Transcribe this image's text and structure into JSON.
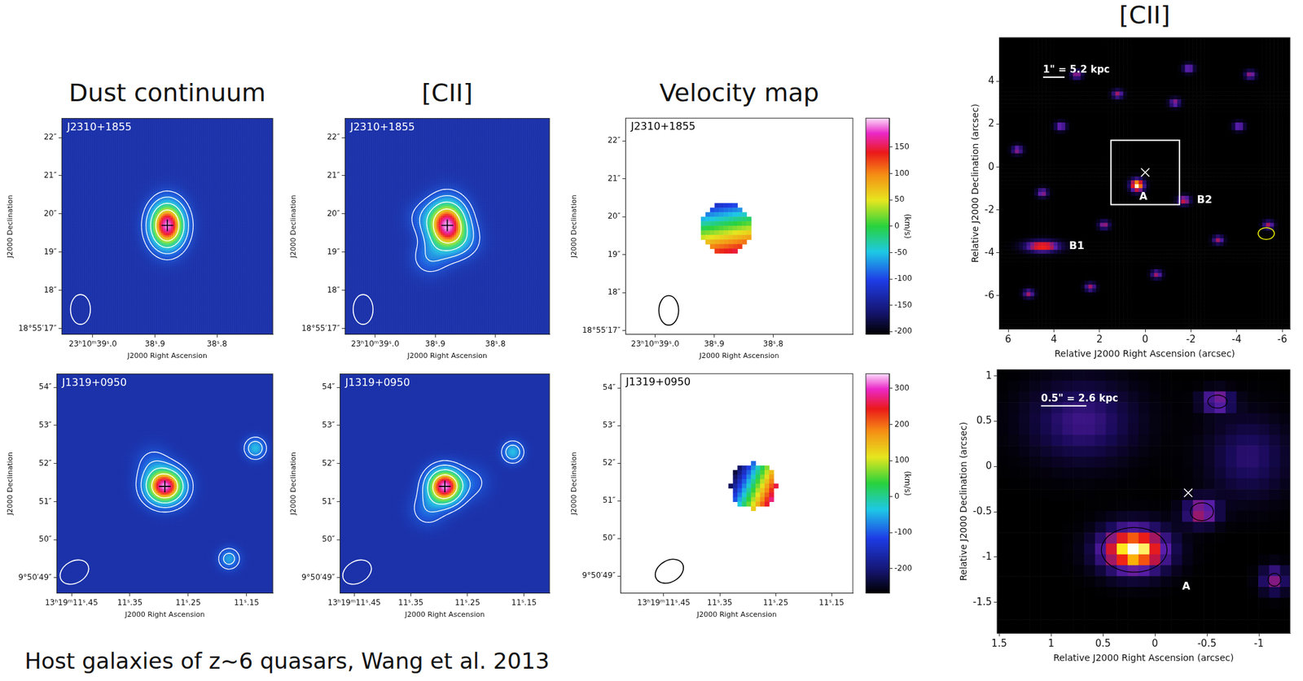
{
  "caption": "Host galaxies of z~6 quasars, Wang et al. 2013",
  "chart_data": [
    {
      "type": "intensity_map",
      "title": "Dust continuum",
      "label": "J2310+1855",
      "x_label": "J2000 Right Ascension",
      "y_label": "J2000 Declination",
      "xlim": [
        39.05,
        38.71
      ],
      "xticks": [
        {
          "value": 39.0,
          "label": "23ʰ10ᵐ39ˢ.0"
        },
        {
          "value": 38.9,
          "label": "38ˢ.9"
        },
        {
          "value": 38.8,
          "label": "38ˢ.8"
        }
      ],
      "ylim": [
        16.85,
        22.5
      ],
      "yticks": [
        {
          "value": 17,
          "label": "18°55′17″"
        },
        {
          "value": 18,
          "label": "18″"
        },
        {
          "value": 19,
          "label": "19″"
        },
        {
          "value": 20,
          "label": "20″"
        },
        {
          "value": 21,
          "label": "21″"
        },
        {
          "value": 22,
          "label": "22″"
        }
      ],
      "grid": false,
      "marker": "cross",
      "quasar_position": {
        "x": 38.88,
        "y": 19.7
      },
      "sources": [
        {
          "x": 38.88,
          "y": 19.7,
          "peak": 1.0,
          "sigma": [
            0.3,
            0.4
          ]
        }
      ],
      "contours": [
        0.08,
        0.18,
        0.35,
        0.6
      ],
      "beam": {
        "x": 39.02,
        "y": 17.5,
        "major": 0.78,
        "minor": 0.52,
        "pa": 0
      }
    },
    {
      "type": "intensity_map",
      "title": "[CII]",
      "label": "J2310+1855",
      "x_label": "J2000 Right Ascension",
      "y_label": "J2000 Declination",
      "xlim": [
        39.05,
        38.71
      ],
      "xticks": [
        {
          "value": 39.0,
          "label": "23ʰ10ᵐ39ˢ.0"
        },
        {
          "value": 38.9,
          "label": "38ˢ.9"
        },
        {
          "value": 38.8,
          "label": "38ˢ.8"
        }
      ],
      "ylim": [
        16.85,
        22.5
      ],
      "yticks": [
        {
          "value": 17,
          "label": "18°55′17″"
        },
        {
          "value": 18,
          "label": "18″"
        },
        {
          "value": 19,
          "label": "19″"
        },
        {
          "value": 20,
          "label": "20″"
        },
        {
          "value": 21,
          "label": "21″"
        },
        {
          "value": 22,
          "label": "22″"
        }
      ],
      "grid": false,
      "marker": "cross",
      "quasar_position": {
        "x": 38.88,
        "y": 19.7
      },
      "sources": [
        {
          "x": 38.88,
          "y": 19.7,
          "peak": 1.0,
          "sigma": [
            0.33,
            0.42
          ]
        },
        {
          "x": 38.91,
          "y": 18.85,
          "peak": 0.15,
          "sigma": [
            0.3,
            0.3
          ]
        },
        {
          "x": 38.85,
          "y": 19.3,
          "peak": 0.12,
          "sigma": [
            0.3,
            0.3
          ]
        },
        {
          "x": 38.92,
          "y": 19.9,
          "peak": 0.1,
          "sigma": [
            0.3,
            0.3
          ]
        }
      ],
      "contours": [
        0.08,
        0.18,
        0.35,
        0.6
      ],
      "beam": {
        "x": 39.02,
        "y": 17.5,
        "major": 0.78,
        "minor": 0.52,
        "pa": 0
      }
    },
    {
      "type": "velocity_map",
      "title": "Velocity map",
      "label": "J2310+1855",
      "x_label": "J2000 Right Ascension",
      "y_label": "J2000 Declination",
      "xlim": [
        39.05,
        38.665
      ],
      "xticks": [
        {
          "value": 39.0,
          "label": "23ʰ10ᵐ39ˢ.0"
        },
        {
          "value": 38.9,
          "label": "38ˢ.9"
        },
        {
          "value": 38.8,
          "label": "38ˢ.8"
        }
      ],
      "ylim": [
        16.9,
        22.6
      ],
      "yticks": [
        {
          "value": 17,
          "label": "18°55′17″"
        },
        {
          "value": 18,
          "label": "18″"
        },
        {
          "value": 19,
          "label": "19″"
        },
        {
          "value": 20,
          "label": "20″"
        },
        {
          "value": 21,
          "label": "21″"
        },
        {
          "value": 22,
          "label": "22″"
        }
      ],
      "grid": false,
      "velocity_field": {
        "x": 38.88,
        "y": 19.7,
        "radius": 0.65,
        "pixel_size": 0.12,
        "v_min": -120,
        "v_max": 150,
        "pa": 190
      },
      "beam": {
        "x": 38.977,
        "y": 17.53,
        "major": 0.78,
        "minor": 0.52,
        "pa": 0
      },
      "colorbar": {
        "title": "(km/s)",
        "ylim": [
          -205,
          205
        ],
        "yticks": [
          -200,
          -150,
          -100,
          -50,
          0,
          50,
          100,
          150
        ]
      }
    },
    {
      "type": "intensity_map",
      "label": "J1319+0950",
      "x_label": "J2000 Right Ascension",
      "y_label": "J2000 Declination",
      "xlim": [
        11.475,
        11.105
      ],
      "xticks": [
        {
          "value": 11.45,
          "label": "13ʰ19ᵐ11ˢ.45"
        },
        {
          "value": 11.35,
          "label": "11ˢ.35"
        },
        {
          "value": 11.25,
          "label": "11ˢ.25"
        },
        {
          "value": 11.15,
          "label": "11ˢ.15"
        }
      ],
      "ylim": [
        48.6,
        54.35
      ],
      "yticks": [
        {
          "value": 49,
          "label": "9°50′49″"
        },
        {
          "value": 50,
          "label": "50″"
        },
        {
          "value": 51,
          "label": "51″"
        },
        {
          "value": 52,
          "label": "52″"
        },
        {
          "value": 53,
          "label": "53″"
        },
        {
          "value": 54,
          "label": "54″"
        }
      ],
      "grid": false,
      "marker": "cross",
      "quasar_position": {
        "x": 11.29,
        "y": 51.4
      },
      "sources": [
        {
          "x": 11.29,
          "y": 51.4,
          "peak": 1.0,
          "sigma": [
            0.33,
            0.3
          ]
        },
        {
          "x": 11.31,
          "y": 52.0,
          "peak": 0.12,
          "sigma": [
            0.3,
            0.3
          ]
        },
        {
          "x": 11.135,
          "y": 52.4,
          "peak": 0.3,
          "sigma": [
            0.18,
            0.18
          ]
        },
        {
          "x": 11.18,
          "y": 49.5,
          "peak": 0.25,
          "sigma": [
            0.18,
            0.18
          ]
        }
      ],
      "contours": [
        0.08,
        0.18,
        0.35,
        0.6
      ],
      "beam": {
        "x": 11.445,
        "y": 49.15,
        "major": 0.8,
        "minor": 0.57,
        "pa": 300
      }
    },
    {
      "type": "intensity_map",
      "label": "J1319+0950",
      "x_label": "J2000 Right Ascension",
      "y_label": "J2000 Declination",
      "xlim": [
        11.475,
        11.105
      ],
      "xticks": [
        {
          "value": 11.45,
          "label": "13ʰ19ᵐ11ˢ.45"
        },
        {
          "value": 11.35,
          "label": "11ˢ.35"
        },
        {
          "value": 11.25,
          "label": "11ˢ.25"
        },
        {
          "value": 11.15,
          "label": "11ˢ.15"
        }
      ],
      "ylim": [
        48.6,
        54.35
      ],
      "yticks": [
        {
          "value": 49,
          "label": "9°50′49″"
        },
        {
          "value": 50,
          "label": "50″"
        },
        {
          "value": 51,
          "label": "51″"
        },
        {
          "value": 52,
          "label": "52″"
        },
        {
          "value": 53,
          "label": "53″"
        },
        {
          "value": 54,
          "label": "54″"
        }
      ],
      "grid": false,
      "marker": "cross",
      "quasar_position": {
        "x": 11.29,
        "y": 51.4
      },
      "sources": [
        {
          "x": 11.29,
          "y": 51.4,
          "peak": 1.0,
          "sigma": [
            0.3,
            0.3
          ]
        },
        {
          "x": 11.32,
          "y": 50.8,
          "peak": 0.15,
          "sigma": [
            0.3,
            0.3
          ]
        },
        {
          "x": 11.24,
          "y": 51.5,
          "peak": 0.1,
          "sigma": [
            0.3,
            0.3
          ]
        },
        {
          "x": 11.17,
          "y": 52.3,
          "peak": 0.3,
          "sigma": [
            0.18,
            0.18
          ]
        }
      ],
      "contours": [
        0.08,
        0.18,
        0.35,
        0.6
      ],
      "beam": {
        "x": 11.445,
        "y": 49.15,
        "major": 0.8,
        "minor": 0.57,
        "pa": 300
      }
    },
    {
      "type": "velocity_map",
      "label": "J1319+0950",
      "x_label": "J2000 Right Ascension",
      "y_label": "J2000 Declination",
      "xlim": [
        11.527,
        11.112
      ],
      "xticks": [
        {
          "value": 11.45,
          "label": "13ʰ19ᵐ11ˢ.45"
        },
        {
          "value": 11.35,
          "label": "11ˢ.35"
        },
        {
          "value": 11.25,
          "label": "11ˢ.25"
        },
        {
          "value": 11.15,
          "label": "11ˢ.15"
        }
      ],
      "ylim": [
        48.55,
        54.38
      ],
      "yticks": [
        {
          "value": 49,
          "label": "9°50′49″"
        },
        {
          "value": 50,
          "label": "50″"
        },
        {
          "value": 51,
          "label": "51″"
        },
        {
          "value": 52,
          "label": "52″"
        },
        {
          "value": 53,
          "label": "53″"
        },
        {
          "value": 54,
          "label": "54″"
        }
      ],
      "grid": false,
      "velocity_field": {
        "x": 11.29,
        "y": 51.4,
        "radius": 0.6,
        "pixel_size": 0.12,
        "v_min": -240,
        "v_max": 280,
        "pa": 245
      },
      "beam": {
        "x": 11.44,
        "y": 49.13,
        "major": 0.8,
        "minor": 0.57,
        "pa": 300
      },
      "colorbar": {
        "title": "(km/s)",
        "ylim": [
          -268,
          341
        ],
        "yticks": [
          -200,
          -100,
          0,
          100,
          200,
          300
        ]
      }
    },
    {
      "type": "heat_map",
      "title": "[CII]",
      "x_label": "Relative J2000 Right Ascension (arcsec)",
      "y_label": "Relative J2000 Declination (arcsec)",
      "xlim": [
        6.38,
        -6.34
      ],
      "xticks": [
        6,
        4,
        2,
        0,
        -2,
        -4,
        -6
      ],
      "ylim": [
        -7.55,
        6.04
      ],
      "yticks": [
        -6,
        -4,
        -2,
        0,
        2,
        4
      ],
      "grid": false,
      "marker": "x",
      "quasar_position": {
        "x": 0,
        "y": -0.25
      },
      "pixel_size": 0.18,
      "sources": [
        {
          "x": 0.35,
          "y": -0.85,
          "peak": 1.0,
          "sigma": [
            0.22,
            0.2
          ]
        },
        {
          "x": 4.5,
          "y": -3.7,
          "peak": 0.75,
          "sigma": [
            0.55,
            0.18
          ]
        },
        {
          "x": -1.7,
          "y": -1.55,
          "peak": 0.6,
          "sigma": [
            0.2,
            0.15
          ]
        },
        {
          "x": 3.0,
          "y": 4.3,
          "peak": 0.5,
          "sigma": [
            0.18,
            0.14
          ]
        },
        {
          "x": 1.2,
          "y": 3.4,
          "peak": 0.5,
          "sigma": [
            0.18,
            0.14
          ]
        },
        {
          "x": -1.9,
          "y": 4.6,
          "peak": 0.5,
          "sigma": [
            0.18,
            0.14
          ]
        },
        {
          "x": 5.6,
          "y": 0.8,
          "peak": 0.5,
          "sigma": [
            0.18,
            0.14
          ]
        },
        {
          "x": -4.1,
          "y": 1.9,
          "peak": 0.5,
          "sigma": [
            0.18,
            0.14
          ]
        },
        {
          "x": -3.2,
          "y": -3.4,
          "peak": 0.5,
          "sigma": [
            0.18,
            0.14
          ]
        },
        {
          "x": 2.4,
          "y": -5.6,
          "peak": 0.5,
          "sigma": [
            0.18,
            0.14
          ]
        },
        {
          "x": -5.4,
          "y": -2.7,
          "peak": 0.5,
          "sigma": [
            0.18,
            0.14
          ]
        },
        {
          "x": 5.1,
          "y": -5.9,
          "peak": 0.5,
          "sigma": [
            0.18,
            0.14
          ]
        },
        {
          "x": -1.3,
          "y": 3.0,
          "peak": 0.5,
          "sigma": [
            0.18,
            0.14
          ]
        },
        {
          "x": 3.7,
          "y": 1.9,
          "peak": 0.5,
          "sigma": [
            0.18,
            0.14
          ]
        },
        {
          "x": -4.6,
          "y": 4.3,
          "peak": 0.5,
          "sigma": [
            0.18,
            0.14
          ]
        },
        {
          "x": 4.5,
          "y": -1.2,
          "peak": 0.5,
          "sigma": [
            0.18,
            0.14
          ]
        },
        {
          "x": -0.5,
          "y": -5.0,
          "peak": 0.5,
          "sigma": [
            0.18,
            0.14
          ]
        },
        {
          "x": 1.8,
          "y": -2.7,
          "peak": 0.5,
          "sigma": [
            0.18,
            0.14
          ]
        }
      ],
      "annotations": [
        {
          "text": "A",
          "x": 0.08,
          "y": -1.4
        },
        {
          "text": "B1",
          "x": 3.0,
          "y": -3.7
        },
        {
          "text": "B2",
          "x": -2.6,
          "y": -1.55
        }
      ],
      "scale_bar": {
        "text": "1\" = 5.2 kpc",
        "length": 1
      },
      "zoom_box": {
        "xlim": [
          1.5,
          -1.5
        ],
        "ylim": [
          -1.75,
          1.25
        ]
      },
      "beam": {
        "x": -5.3,
        "y": -3.1,
        "major": 0.75,
        "minor": 0.55,
        "pa": 90,
        "color": "#e8e800"
      }
    },
    {
      "type": "heat_map",
      "x_label": "Relative J2000 Right Ascension (arcsec)",
      "y_label": "Relative J2000 Declination (arcsec)",
      "xlim": [
        1.52,
        -1.3
      ],
      "xticks": [
        1.5,
        1,
        0.5,
        0,
        -0.5,
        -1
      ],
      "ylim": [
        -1.84,
        1.07
      ],
      "yticks": [
        -1.5,
        -1,
        -0.5,
        0,
        0.5,
        1
      ],
      "grid": false,
      "marker": "x",
      "quasar_position": {
        "x": -0.32,
        "y": -0.29
      },
      "pixel_size": 0.12,
      "sources": [
        {
          "x": 0.2,
          "y": -0.92,
          "peak": 1.0,
          "sigma": [
            0.25,
            0.17
          ]
        },
        {
          "x": -0.45,
          "y": -0.5,
          "peak": 0.55,
          "sigma": [
            0.13,
            0.1
          ]
        },
        {
          "x": -0.6,
          "y": 0.72,
          "peak": 0.5,
          "sigma": [
            0.12,
            0.08
          ]
        },
        {
          "x": -1.15,
          "y": -1.25,
          "peak": 0.45,
          "sigma": [
            0.1,
            0.1
          ]
        },
        {
          "x": 0.7,
          "y": 0.5,
          "peak": 0.3,
          "sigma": [
            0.4,
            0.3
          ]
        },
        {
          "x": -0.9,
          "y": 0.1,
          "peak": 0.25,
          "sigma": [
            0.3,
            0.3
          ]
        }
      ],
      "contours": [
        0.35
      ],
      "annotations": [
        {
          "text": "A",
          "x": -0.3,
          "y": -1.33
        }
      ],
      "scale_bar": {
        "text": "0.5\" = 2.6 kpc",
        "length": 0.5
      }
    }
  ]
}
